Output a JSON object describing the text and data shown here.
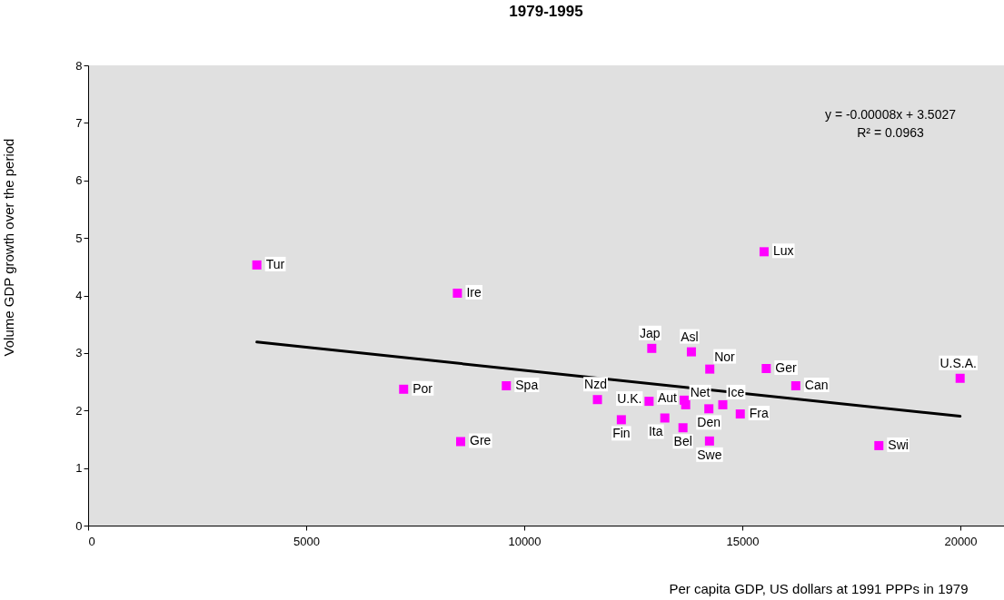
{
  "chart_data": {
    "type": "scatter",
    "title": "1979-1995",
    "xlabel": "Per capita GDP, US dollars at 1991 PPPs in 1979",
    "ylabel": "Volume GDP growth over the period",
    "xlim": [
      0,
      21000
    ],
    "xticks": [
      0,
      5000,
      10000,
      15000,
      20000
    ],
    "ylim": [
      0,
      8
    ],
    "yticks": [
      0,
      1,
      2,
      3,
      4,
      5,
      6,
      7,
      8
    ],
    "grid": false,
    "series": [
      {
        "type": "scatter",
        "color": "#ff00ff",
        "marker": "square",
        "x": [
          3868,
          8467,
          7234,
          9589,
          8542,
          11678,
          12226,
          12924,
          12862,
          13666,
          13701,
          13223,
          13639,
          13832,
          14254,
          14233,
          14247,
          14552,
          14953,
          15499,
          15549,
          16226,
          19994,
          18131
        ],
        "values": [
          4.53,
          4.04,
          2.37,
          2.43,
          1.46,
          2.19,
          1.84,
          3.08,
          2.16,
          2.18,
          2.1,
          1.87,
          1.7,
          3.02,
          2.72,
          2.03,
          1.47,
          2.1,
          1.94,
          4.76,
          2.73,
          2.43,
          2.56,
          1.39
        ]
      },
      {
        "type": "line",
        "color": "#000000",
        "marker": "none",
        "x": [
          3868,
          19994
        ],
        "values": [
          3.19,
          1.9
        ]
      }
    ],
    "annotations": [
      {
        "text": "Tur",
        "x": 3868,
        "y": 4.53
      },
      {
        "text": "Ire",
        "x": 8467,
        "y": 4.04
      },
      {
        "text": "Por",
        "x": 7234,
        "y": 2.37
      },
      {
        "text": "Spa",
        "x": 9589,
        "y": 2.43
      },
      {
        "text": "Gre",
        "x": 8542,
        "y": 1.46
      },
      {
        "text": "Nzd",
        "x": 11678,
        "y": 2.19
      },
      {
        "text": "Fin",
        "x": 12226,
        "y": 1.84
      },
      {
        "text": "Jap",
        "x": 12924,
        "y": 3.08
      },
      {
        "text": "U.K.",
        "x": 12862,
        "y": 2.16
      },
      {
        "text": "Aut",
        "x": 13666,
        "y": 2.18
      },
      {
        "text": "Net",
        "x": 13701,
        "y": 2.1
      },
      {
        "text": "Ita",
        "x": 13223,
        "y": 1.87
      },
      {
        "text": "Bel",
        "x": 13639,
        "y": 1.7
      },
      {
        "text": "Asl",
        "x": 13832,
        "y": 3.02
      },
      {
        "text": "Nor",
        "x": 14254,
        "y": 2.72
      },
      {
        "text": "Den",
        "x": 14233,
        "y": 2.03
      },
      {
        "text": "Swe",
        "x": 14247,
        "y": 1.47
      },
      {
        "text": "Ice",
        "x": 14552,
        "y": 2.1
      },
      {
        "text": "Fra",
        "x": 14953,
        "y": 1.94
      },
      {
        "text": "Lux",
        "x": 15499,
        "y": 4.76
      },
      {
        "text": "Ger",
        "x": 15549,
        "y": 2.73
      },
      {
        "text": "Can",
        "x": 16226,
        "y": 2.43
      },
      {
        "text": "U.S.A.",
        "x": 19994,
        "y": 2.56
      },
      {
        "text": "Swi",
        "x": 18131,
        "y": 1.39
      },
      "y = -0.00008x + 3.5027",
      "R² = 0.0963"
    ]
  }
}
